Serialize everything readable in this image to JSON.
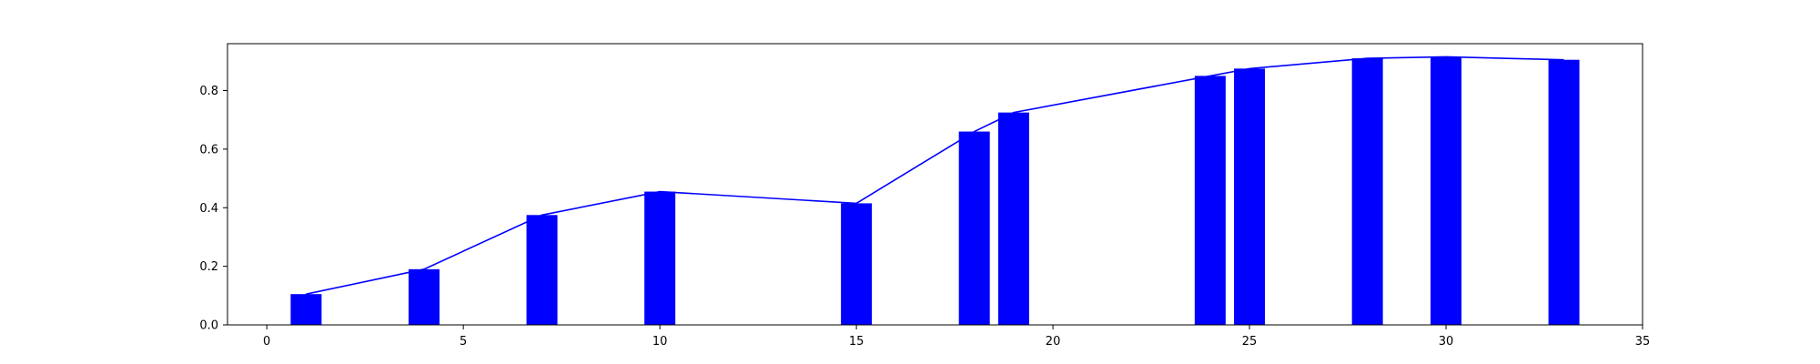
{
  "chart_data": {
    "type": "bar",
    "title": "",
    "xlabel": "",
    "ylabel": "",
    "xlim": [
      -1,
      35
    ],
    "ylim": [
      0,
      0.96
    ],
    "bar_color": "#0000ff",
    "line_color": "#0000ff",
    "grid": false,
    "x": [
      1,
      4,
      7,
      10,
      15,
      18,
      19,
      24,
      25,
      28,
      30,
      33
    ],
    "values": [
      0.105,
      0.19,
      0.375,
      0.455,
      0.415,
      0.66,
      0.725,
      0.85,
      0.875,
      0.91,
      0.915,
      0.905
    ],
    "line": {
      "x": [
        1,
        4,
        7,
        10,
        15,
        18,
        19,
        24,
        25,
        28,
        30,
        33
      ],
      "y": [
        0.105,
        0.19,
        0.375,
        0.455,
        0.415,
        0.66,
        0.725,
        0.85,
        0.875,
        0.91,
        0.915,
        0.905
      ]
    },
    "x_ticks": [
      0,
      5,
      10,
      15,
      20,
      25,
      30,
      35
    ],
    "x_tick_labels": [
      "0",
      "5",
      "10",
      "15",
      "20",
      "25",
      "30",
      "35"
    ],
    "y_ticks": [
      0.0,
      0.2,
      0.4,
      0.6,
      0.8
    ],
    "y_tick_labels": [
      "0.0",
      "0.2",
      "0.4",
      "0.6",
      "0.8"
    ]
  }
}
